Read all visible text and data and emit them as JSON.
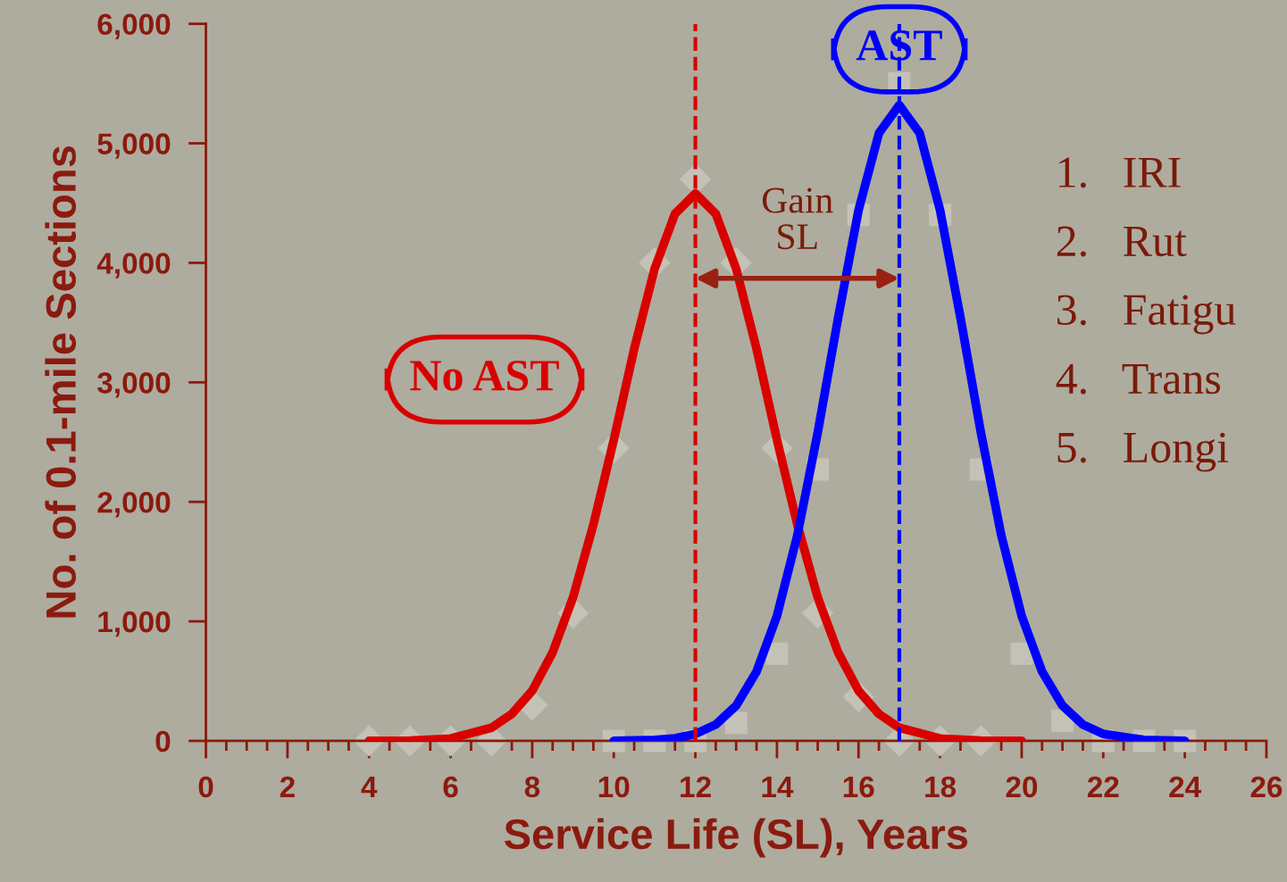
{
  "chart_data": {
    "type": "line",
    "xlabel": "Service Life (SL), Years",
    "ylabel": "No. of 0.1-mile Sections",
    "series": [
      {
        "name": "No AST",
        "color": "#d90000",
        "x": [
          4,
          5,
          6,
          7,
          7.5,
          8,
          8.5,
          9,
          9.5,
          10,
          10.5,
          11,
          11.5,
          12,
          12.5,
          13,
          13.5,
          14,
          14.5,
          15,
          15.5,
          16,
          16.5,
          17,
          18,
          19,
          20
        ],
        "values": [
          0,
          2,
          20,
          110,
          225,
          420,
          740,
          1200,
          1810,
          2520,
          3280,
          3950,
          4410,
          4580,
          4410,
          3950,
          3280,
          2520,
          1810,
          1200,
          740,
          420,
          225,
          110,
          20,
          2,
          0
        ]
      },
      {
        "name": "AST",
        "color": "#0000ff",
        "x": [
          10,
          11,
          11.5,
          12,
          12.5,
          13,
          13.5,
          14,
          14.5,
          15,
          15.5,
          16,
          16.5,
          17,
          17.5,
          18,
          18.5,
          19,
          19.5,
          20,
          20.5,
          21,
          21.5,
          22,
          23,
          24
        ],
        "values": [
          0,
          8,
          22,
          58,
          137,
          295,
          580,
          1045,
          1720,
          2580,
          3540,
          4440,
          5085,
          5320,
          5085,
          4440,
          3540,
          2580,
          1720,
          1045,
          580,
          295,
          137,
          58,
          8,
          0
        ]
      },
      {
        "type": "scatter",
        "marker": "diamond",
        "color": "#c4c2b6",
        "x": [
          4,
          5,
          6,
          7,
          8,
          9,
          10,
          11,
          12,
          13,
          14,
          15,
          16,
          17,
          18,
          19
        ],
        "values": [
          0,
          0,
          0,
          0,
          300,
          1070,
          2450,
          4000,
          4700,
          4000,
          2450,
          1070,
          370,
          0,
          0,
          0
        ]
      },
      {
        "type": "scatter",
        "marker": "square",
        "color": "#c4c2b6",
        "x": [
          10,
          11,
          12,
          13,
          14,
          15,
          16,
          17,
          18,
          19,
          20,
          21,
          22,
          23,
          24
        ],
        "values": [
          0,
          0,
          0,
          150,
          730,
          2270,
          4400,
          5500,
          4400,
          2270,
          730,
          170,
          0,
          0,
          0
        ]
      }
    ],
    "ref_lines": [
      {
        "axis": "x",
        "value": 12,
        "color": "#d90000",
        "line_style": "dashed"
      },
      {
        "axis": "x",
        "value": 17,
        "color": "#0000ff",
        "line_style": "dashed"
      }
    ],
    "annotations": [
      "Gain\nSL",
      "1.   IRI",
      "2.   Rut",
      "3.   Fatigu",
      "4.   Trans",
      "5.   Longi"
    ],
    "xlim": [
      0,
      26
    ],
    "xticks": [
      0,
      2,
      4,
      6,
      8,
      10,
      12,
      14,
      16,
      18,
      20,
      22,
      24,
      26
    ],
    "ylim": [
      0,
      6000
    ],
    "yticks": [
      {
        "value": 0,
        "label": "0"
      },
      {
        "value": 1000,
        "label": "1,000"
      },
      {
        "value": 2000,
        "label": "2,000"
      },
      {
        "value": 3000,
        "label": "3,000"
      },
      {
        "value": 4000,
        "label": "4,000"
      },
      {
        "value": 5000,
        "label": "5,000"
      },
      {
        "value": 6000,
        "label": "6,000"
      }
    ],
    "grid": false,
    "legend": false
  }
}
